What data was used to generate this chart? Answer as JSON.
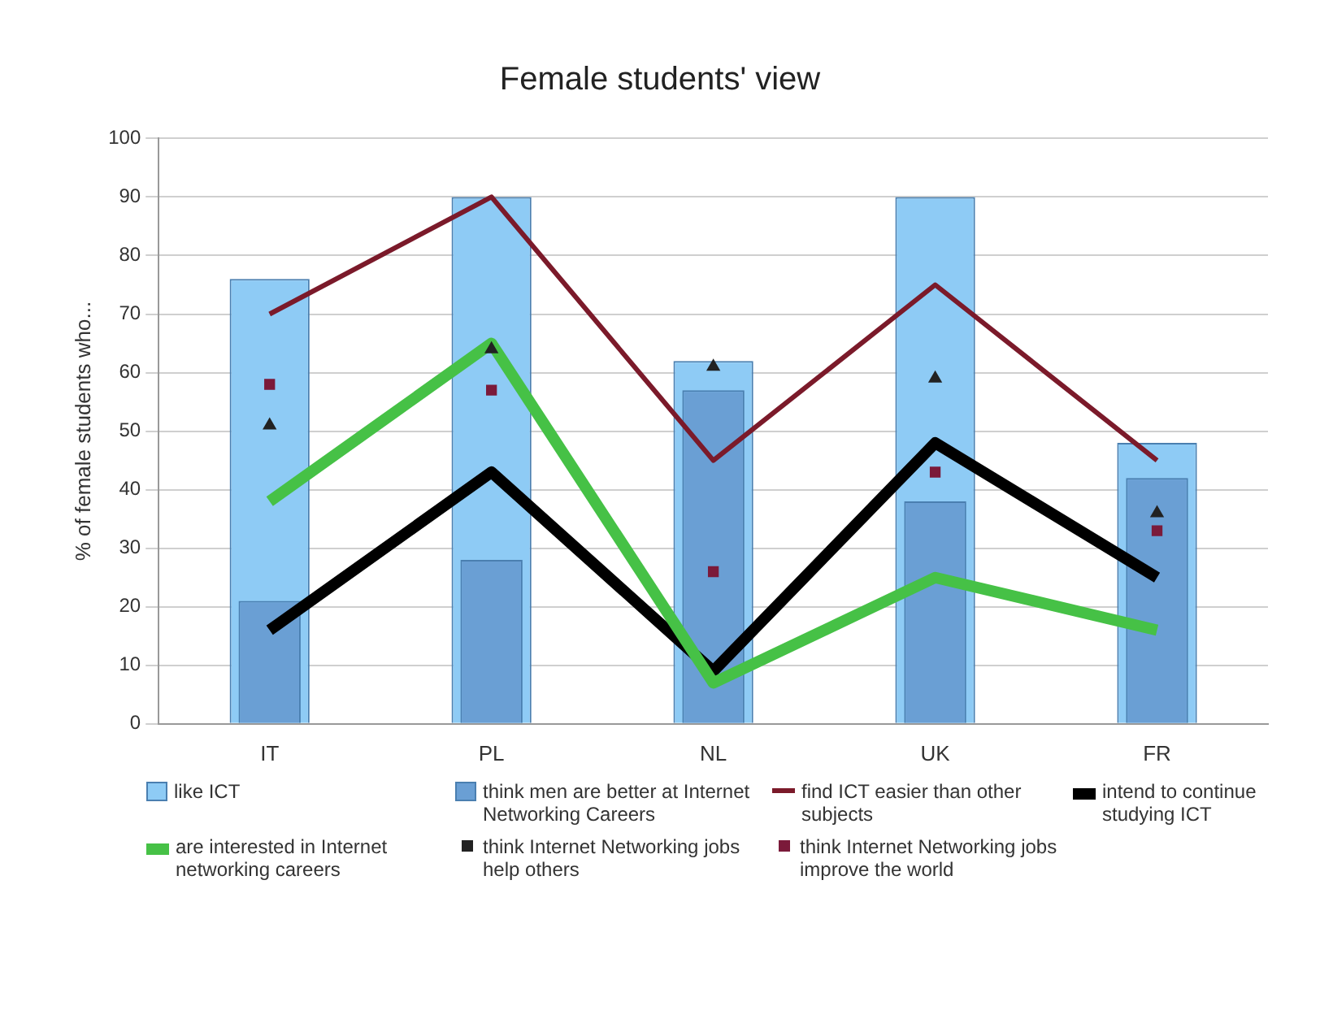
{
  "chart_data": {
    "type": "bar",
    "title": "Female students' view",
    "ylabel": "% of female students who...",
    "categories": [
      "IT",
      "PL",
      "NL",
      "UK",
      "FR"
    ],
    "ylim": [
      0,
      100
    ],
    "yticks": [
      0,
      10,
      20,
      30,
      40,
      50,
      60,
      70,
      80,
      90,
      100
    ],
    "grid": "y",
    "legend": "bottom",
    "series": [
      {
        "name": "like ICT",
        "color": "#8ecbf5",
        "values": [
          76,
          90,
          62,
          90,
          48
        ]
      },
      {
        "name": "think men are better at Internet Networking Careers",
        "color": "#6a9fd4",
        "values": [
          21,
          28,
          57,
          38,
          42
        ]
      },
      {
        "name": "find ICT easier than other subjects",
        "type": "line",
        "color": "#7b1a2a",
        "marker": "none",
        "values": [
          70,
          90,
          45,
          75,
          45
        ]
      },
      {
        "name": "intend to continue studying ICT",
        "type": "line",
        "color": "#000000",
        "marker": "none",
        "values": [
          16,
          43,
          9,
          48,
          25
        ]
      },
      {
        "name": "are interested in Internet networking careers",
        "type": "line",
        "color": "#46c146",
        "marker": "none",
        "values": [
          38,
          65,
          7,
          25,
          16
        ]
      },
      {
        "name": "think Internet Networking jobs help others",
        "type": "scatter",
        "color": "#222222",
        "marker": "triangle",
        "x": [
          "IT",
          "PL",
          "NL",
          "UK",
          "FR"
        ],
        "values": [
          51,
          64,
          61,
          59,
          36
        ]
      },
      {
        "name": "think Internet Networking jobs improve the world",
        "type": "scatter",
        "color": "#7b1a3a",
        "marker": "square",
        "x": [
          "IT",
          "PL",
          "NL",
          "UK",
          "FR"
        ],
        "values": [
          58,
          57,
          26,
          43,
          33
        ]
      }
    ]
  }
}
